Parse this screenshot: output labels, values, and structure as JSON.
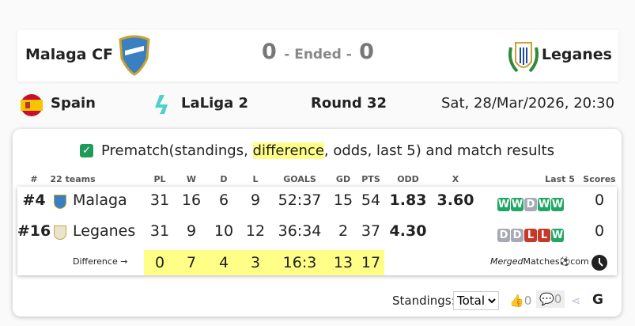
{
  "match": {
    "home": "Malaga CF",
    "away": "Leganes",
    "home_score": "0",
    "away_score": "0",
    "status": "- Ended -"
  },
  "info": {
    "country": "Spain",
    "league": "LaLiga 2",
    "round": "Round 32",
    "datetime": "Sat, 28/Mar/2026, 20:30"
  },
  "card": {
    "title_pre": "Prematch(standings, ",
    "title_hl": "difference",
    "title_post": ", odds, last 5) and match results"
  },
  "headers": {
    "rank": "#",
    "teams": "22 teams",
    "pl": "PL",
    "w": "W",
    "d": "D",
    "l": "L",
    "goals": "GOALS",
    "gd": "GD",
    "pts": "PTS",
    "odd": "ODD",
    "x": "X",
    "last5": "Last 5",
    "scores": "Scores"
  },
  "rows": [
    {
      "rank": "#4",
      "team": "Malaga",
      "pl": "31",
      "w": "16",
      "d": "6",
      "l": "9",
      "goals": "52:37",
      "gd": "15",
      "pts": "54",
      "odd": "1.83",
      "x": "3.60",
      "last5": [
        "W",
        "W",
        "D",
        "W",
        "W"
      ],
      "score": "0"
    },
    {
      "rank": "#16",
      "team": "Leganes",
      "pl": "31",
      "w": "9",
      "d": "10",
      "l": "12",
      "goals": "36:34",
      "gd": "2",
      "pts": "37",
      "odd": "4.30",
      "x": "",
      "last5": [
        "D",
        "D",
        "L",
        "L",
        "W"
      ],
      "score": "0"
    }
  ],
  "difference": {
    "label": "Difference →",
    "pl": "0",
    "w": "7",
    "d": "4",
    "l": "3",
    "goals": "16:3",
    "gd": "13",
    "pts": "17"
  },
  "brand": {
    "italic": "Merged",
    "rest": "Matches",
    "tld": "com"
  },
  "footer": {
    "standings_label": "Standings:",
    "standings_value": "Total",
    "likes": "0",
    "comments": "0"
  },
  "colors": {
    "win": "#1fa764",
    "draw": "#a7aab4",
    "loss": "#c8372a",
    "highlight": "#ffff88",
    "check": "#1e9a5a"
  }
}
